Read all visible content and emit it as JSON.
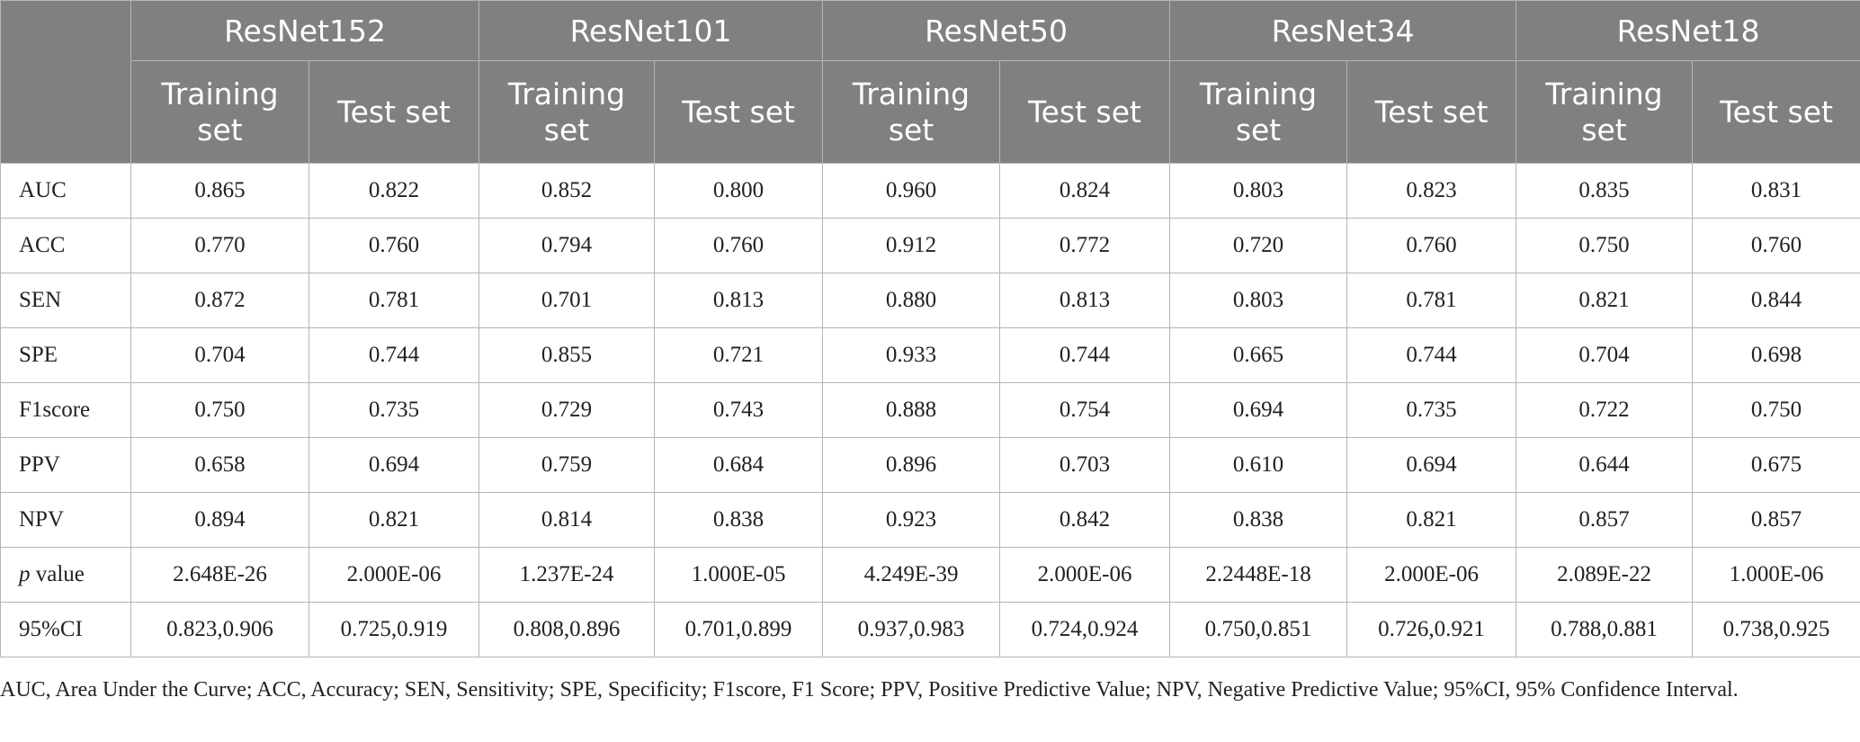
{
  "models": [
    "ResNet152",
    "ResNet101",
    "ResNet50",
    "ResNet34",
    "ResNet18"
  ],
  "set_labels": {
    "training": "Training set",
    "test": "Test set"
  },
  "rows": [
    {
      "label": "AUC",
      "values": [
        "0.865",
        "0.822",
        "0.852",
        "0.800",
        "0.960",
        "0.824",
        "0.803",
        "0.823",
        "0.835",
        "0.831"
      ]
    },
    {
      "label": "ACC",
      "values": [
        "0.770",
        "0.760",
        "0.794",
        "0.760",
        "0.912",
        "0.772",
        "0.720",
        "0.760",
        "0.750",
        "0.760"
      ]
    },
    {
      "label": "SEN",
      "values": [
        "0.872",
        "0.781",
        "0.701",
        "0.813",
        "0.880",
        "0.813",
        "0.803",
        "0.781",
        "0.821",
        "0.844"
      ]
    },
    {
      "label": "SPE",
      "values": [
        "0.704",
        "0.744",
        "0.855",
        "0.721",
        "0.933",
        "0.744",
        "0.665",
        "0.744",
        "0.704",
        "0.698"
      ]
    },
    {
      "label": "F1score",
      "values": [
        "0.750",
        "0.735",
        "0.729",
        "0.743",
        "0.888",
        "0.754",
        "0.694",
        "0.735",
        "0.722",
        "0.750"
      ]
    },
    {
      "label": "PPV",
      "values": [
        "0.658",
        "0.694",
        "0.759",
        "0.684",
        "0.896",
        "0.703",
        "0.610",
        "0.694",
        "0.644",
        "0.675"
      ]
    },
    {
      "label": "NPV",
      "values": [
        "0.894",
        "0.821",
        "0.814",
        "0.838",
        "0.923",
        "0.842",
        "0.838",
        "0.821",
        "0.857",
        "0.857"
      ]
    },
    {
      "label_italic": "p",
      "label_rest": " value",
      "values": [
        "2.648E-26",
        "2.000E-06",
        "1.237E-24",
        "1.000E-05",
        "4.249E-39",
        "2.000E-06",
        "2.2448E-18",
        "2.000E-06",
        "2.089E-22",
        "1.000E-06"
      ]
    },
    {
      "label": "95%CI",
      "values": [
        "0.823,0.906",
        "0.725,0.919",
        "0.808,0.896",
        "0.701,0.899",
        "0.937,0.983",
        "0.724,0.924",
        "0.750,0.851",
        "0.726,0.921",
        "0.788,0.881",
        "0.738,0.925"
      ]
    }
  ],
  "footnote": "AUC, Area Under the Curve; ACC, Accuracy; SEN, Sensitivity; SPE, Specificity; F1score, F1 Score; PPV, Positive Predictive Value; NPV, Negative Predictive Value; 95%CI, 95% Confidence Interval.",
  "colors": {
    "header_bg": "#808080",
    "header_text": "#ffffff",
    "border": "#b5b5b5"
  }
}
